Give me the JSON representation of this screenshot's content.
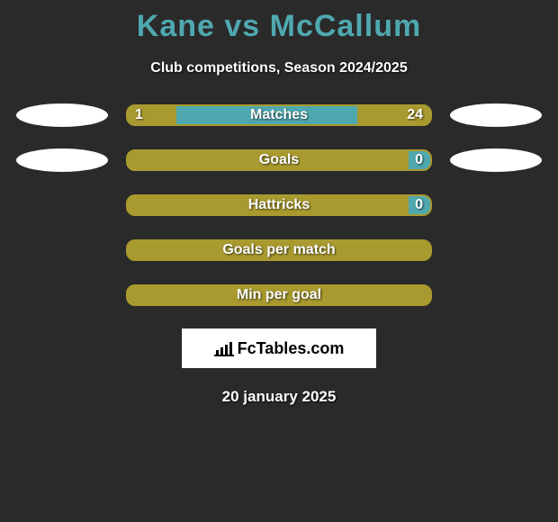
{
  "title": "Kane vs McCallum",
  "title_color": "#4fa8b0",
  "subtitle": "Club competitions, Season 2024/2025",
  "background_color": "#2a2a2a",
  "text_color": "#ffffff",
  "rows": [
    {
      "label": "Matches",
      "left_value": "1",
      "right_value": "24",
      "left_fill_pct": 16,
      "right_fill_pct": 24,
      "left_fill_color": "#a99a2f",
      "right_fill_color": "#a99a2f",
      "bar_bg_color": "#4fa8b0",
      "border_color": "#a99a2f",
      "left_oval_color": "#ffffff",
      "right_oval_color": "#ffffff",
      "show_left_value": true,
      "show_right_value": true,
      "show_ovals": true
    },
    {
      "label": "Goals",
      "left_value": "",
      "right_value": "0",
      "left_fill_pct": 0,
      "right_fill_pct": 7,
      "left_fill_color": "#a99a2f",
      "right_fill_color": "#4fa8b0",
      "bar_bg_color": "#a99a2f",
      "border_color": "#a99a2f",
      "left_oval_color": "#ffffff",
      "right_oval_color": "#ffffff",
      "show_left_value": false,
      "show_right_value": true,
      "show_ovals": true
    },
    {
      "label": "Hattricks",
      "left_value": "",
      "right_value": "0",
      "left_fill_pct": 0,
      "right_fill_pct": 7,
      "left_fill_color": "#a99a2f",
      "right_fill_color": "#4fa8b0",
      "bar_bg_color": "#a99a2f",
      "border_color": "#a99a2f",
      "left_oval_color": "",
      "right_oval_color": "",
      "show_left_value": false,
      "show_right_value": true,
      "show_ovals": false
    },
    {
      "label": "Goals per match",
      "left_value": "",
      "right_value": "",
      "left_fill_pct": 0,
      "right_fill_pct": 0,
      "left_fill_color": "#a99a2f",
      "right_fill_color": "#a99a2f",
      "bar_bg_color": "#a99a2f",
      "border_color": "#a99a2f",
      "left_oval_color": "",
      "right_oval_color": "",
      "show_left_value": false,
      "show_right_value": false,
      "show_ovals": false
    },
    {
      "label": "Min per goal",
      "left_value": "",
      "right_value": "",
      "left_fill_pct": 0,
      "right_fill_pct": 0,
      "left_fill_color": "#a99a2f",
      "right_fill_color": "#a99a2f",
      "bar_bg_color": "#a99a2f",
      "border_color": "#a99a2f",
      "left_oval_color": "",
      "right_oval_color": "",
      "show_left_value": false,
      "show_right_value": false,
      "show_ovals": false
    }
  ],
  "logo_text": "FcTables.com",
  "logo_bg_color": "#ffffff",
  "logo_text_color": "#000000",
  "date": "20 january 2025"
}
